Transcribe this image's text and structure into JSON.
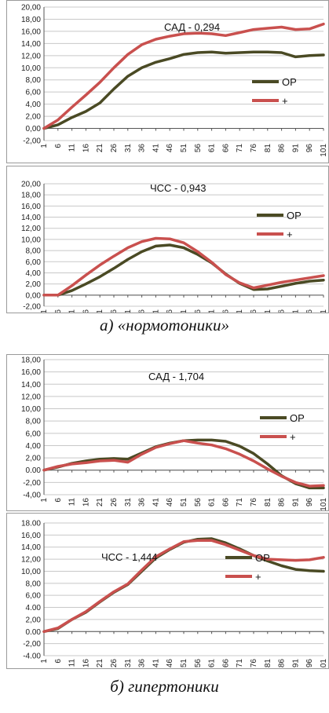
{
  "captions": {
    "normo": "а) «нормотоники»",
    "hyper": "б) гипертоники"
  },
  "colors": {
    "op": "#4a4a24",
    "plus": "#c9504e",
    "grid": "#c8c8c8",
    "axis": "#555555"
  },
  "x_tick_labels": [
    "1",
    "6",
    "11",
    "16",
    "21",
    "26",
    "31",
    "36",
    "41",
    "46",
    "51",
    "56",
    "61",
    "66",
    "71",
    "76",
    "81",
    "86",
    "91",
    "96",
    "101"
  ],
  "chart_data": [
    {
      "type": "line",
      "title": "САД - 0,294",
      "ylim": [
        -2,
        20
      ],
      "y_ticks": [
        "20,00",
        "18,00",
        "16,00",
        "14,00",
        "12,00",
        "10,00",
        "8,00",
        "6,00",
        "4,00",
        "2,00",
        "0,00",
        "-2,00"
      ],
      "x": [
        1,
        6,
        11,
        16,
        21,
        26,
        31,
        36,
        41,
        46,
        51,
        56,
        61,
        66,
        71,
        76,
        81,
        86,
        91,
        96,
        101
      ],
      "series": [
        {
          "name": "ОР",
          "values": [
            0,
            0.6,
            1.8,
            2.8,
            4.2,
            6.5,
            8.6,
            10.0,
            10.9,
            11.5,
            12.2,
            12.5,
            12.6,
            12.4,
            12.5,
            12.6,
            12.6,
            12.5,
            11.8,
            12.0,
            12.1
          ]
        },
        {
          "name": "+",
          "values": [
            0,
            1.4,
            3.5,
            5.5,
            7.6,
            10.0,
            12.2,
            13.8,
            14.7,
            15.2,
            15.6,
            15.7,
            15.6,
            15.3,
            15.8,
            16.3,
            16.5,
            16.7,
            16.3,
            16.4,
            17.2
          ]
        }
      ]
    },
    {
      "type": "line",
      "title": "ЧСС - 0,943",
      "ylim": [
        -2,
        20
      ],
      "y_ticks": [
        "20,00",
        "18,00",
        "16,00",
        "14,00",
        "12,00",
        "10,00",
        "8,00",
        "6,00",
        "4,00",
        "2,00",
        "0,00",
        "-2,00"
      ],
      "x": [
        1,
        6,
        11,
        16,
        21,
        26,
        31,
        36,
        41,
        46,
        51,
        56,
        61,
        66,
        71,
        76,
        81,
        86,
        91,
        96,
        101
      ],
      "series": [
        {
          "name": "ОР",
          "values": [
            0,
            0,
            0.8,
            2.0,
            3.3,
            4.8,
            6.4,
            7.8,
            8.8,
            9.0,
            8.5,
            7.3,
            5.8,
            3.8,
            2.1,
            1.0,
            1.1,
            1.6,
            2.1,
            2.5,
            2.7
          ]
        },
        {
          "name": "+",
          "values": [
            0,
            0,
            1.7,
            3.6,
            5.4,
            7.0,
            8.5,
            9.6,
            10.2,
            10.1,
            9.4,
            7.8,
            5.9,
            3.7,
            2.2,
            1.3,
            1.8,
            2.3,
            2.7,
            3.1,
            3.5
          ]
        }
      ]
    },
    {
      "type": "line",
      "title": "САД - 1,704",
      "ylim": [
        -4,
        18
      ],
      "y_ticks": [
        "18,00",
        "16,00",
        "14,00",
        "12,00",
        "10,00",
        "8,00",
        "6,00",
        "4,00",
        "2,00",
        "0.00",
        "-2,00",
        "-4,00"
      ],
      "x": [
        1,
        6,
        11,
        16,
        21,
        26,
        31,
        36,
        41,
        46,
        51,
        56,
        61,
        66,
        71,
        76,
        81,
        86,
        91,
        96,
        101
      ],
      "series": [
        {
          "name": "ОР",
          "values": [
            0,
            0.5,
            1.1,
            1.5,
            1.8,
            1.9,
            1.8,
            2.8,
            3.8,
            4.4,
            4.8,
            4.9,
            4.9,
            4.7,
            3.9,
            2.7,
            1.0,
            -0.9,
            -2.2,
            -2.9,
            -2.9
          ]
        },
        {
          "name": "+",
          "values": [
            0,
            0.6,
            1.0,
            1.2,
            1.5,
            1.6,
            1.3,
            2.6,
            3.7,
            4.3,
            4.8,
            4.4,
            4.1,
            3.5,
            2.6,
            1.5,
            0.2,
            -1.0,
            -2.0,
            -2.6,
            -2.5
          ]
        }
      ]
    },
    {
      "type": "line",
      "title": "ЧСС - 1,444",
      "ylim": [
        -4,
        18
      ],
      "y_ticks": [
        "18.00",
        "16,00",
        "14,00",
        "12,00",
        "10,00",
        "8,00",
        "6,00",
        "4.00",
        "2,00",
        "0.00",
        "-2,00",
        "-4.00"
      ],
      "x": [
        1,
        6,
        11,
        16,
        21,
        26,
        31,
        36,
        41,
        46,
        51,
        56,
        61,
        66,
        71,
        76,
        81,
        86,
        91,
        96,
        101
      ],
      "series": [
        {
          "name": "ОР",
          "values": [
            0,
            0.5,
            2.0,
            3.2,
            4.9,
            6.5,
            7.8,
            10.0,
            12.2,
            13.6,
            14.8,
            15.3,
            15.4,
            14.7,
            13.7,
            12.6,
            11.7,
            10.9,
            10.3,
            10.1,
            10.0
          ]
        },
        {
          "name": "+",
          "values": [
            0,
            0.6,
            2.0,
            3.3,
            5.0,
            6.6,
            7.9,
            10.2,
            12.4,
            13.7,
            14.9,
            15.1,
            15.1,
            14.4,
            13.5,
            12.6,
            12.0,
            11.9,
            11.8,
            11.9,
            12.3
          ]
        }
      ]
    }
  ]
}
